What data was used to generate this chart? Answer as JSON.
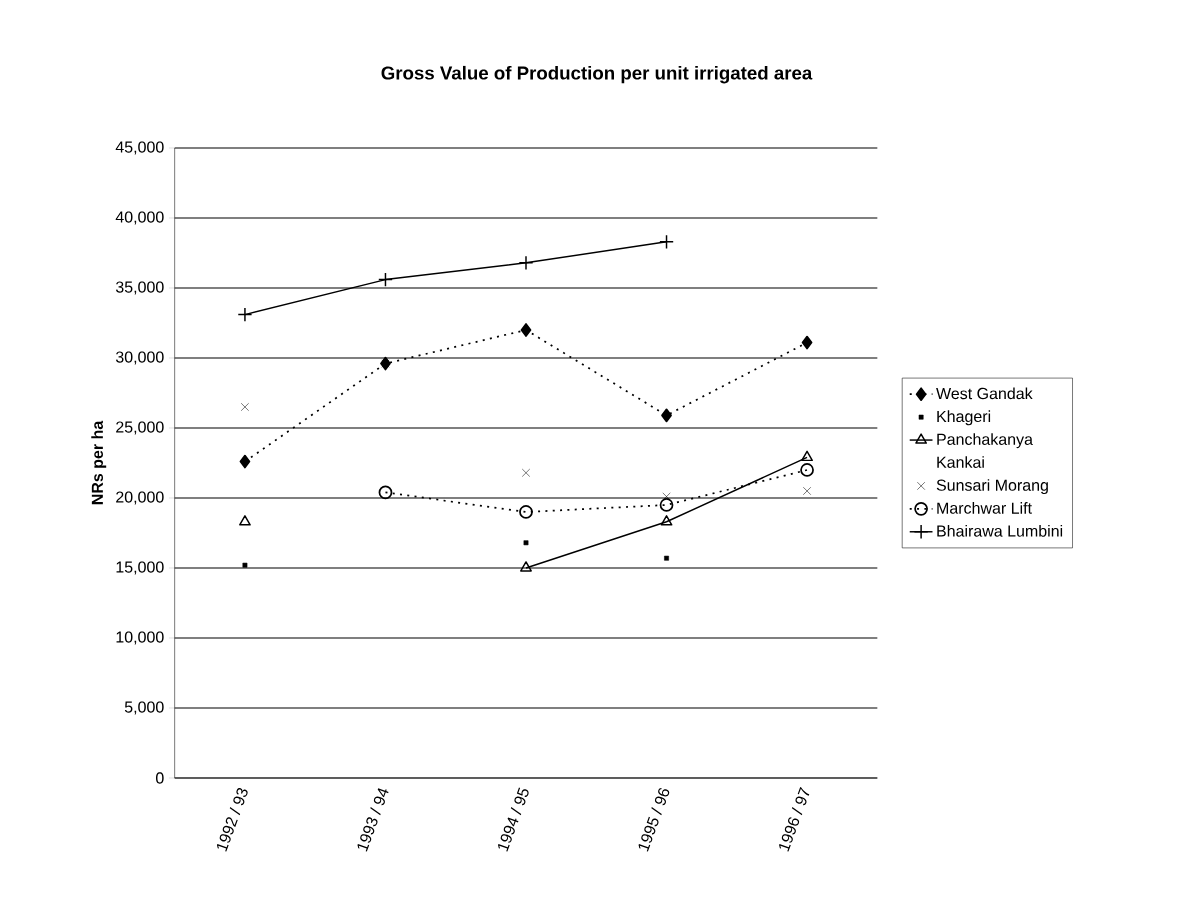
{
  "chart_data": {
    "type": "line",
    "title": "Gross Value of Production per unit irrigated area",
    "ylabel": "NRs per ha",
    "categories": [
      "1992 / 93",
      "1993 / 94",
      "1994 / 95",
      "1995 / 96",
      "1996 / 97"
    ],
    "ylim": [
      0,
      45000
    ],
    "yticks": [
      {
        "value": 0,
        "label": "0"
      },
      {
        "value": 5000,
        "label": "5,000"
      },
      {
        "value": 10000,
        "label": "10,000"
      },
      {
        "value": 15000,
        "label": "15,000"
      },
      {
        "value": 20000,
        "label": "20,000"
      },
      {
        "value": 25000,
        "label": "25,000"
      },
      {
        "value": 30000,
        "label": "30,000"
      },
      {
        "value": 35000,
        "label": "35,000"
      },
      {
        "value": 40000,
        "label": "40,000"
      },
      {
        "value": 45000,
        "label": "45,000"
      }
    ],
    "grid": "y",
    "legend": "right",
    "series": [
      {
        "name": "West Gandak",
        "color": "#000000",
        "marker": "diamond",
        "line_style": "dotted",
        "values": [
          22600,
          29600,
          32000,
          25900,
          31100
        ]
      },
      {
        "name": "Khageri",
        "type": "scatter",
        "color": "#000000",
        "marker": "square",
        "values": [
          15200,
          null,
          16800,
          15700,
          null
        ]
      },
      {
        "name": "Panchakanya",
        "color": "#000000",
        "marker": "triangle",
        "line_style": "solid",
        "values": [
          18300,
          null,
          15000,
          18300,
          22900
        ]
      },
      {
        "name": "Kankai",
        "type": "scatter",
        "color": "#000000",
        "marker": "none",
        "values": [
          null,
          null,
          null,
          null,
          null
        ]
      },
      {
        "name": "Sunsari Morang",
        "type": "scatter",
        "color": "#000000",
        "marker": "cross",
        "values": [
          26500,
          29600,
          21800,
          20100,
          20500
        ]
      },
      {
        "name": "Marchwar Lift",
        "color": "#000000",
        "marker": "circle",
        "line_style": "dotted",
        "values": [
          null,
          20400,
          19000,
          19500,
          22000
        ]
      },
      {
        "name": "Bhairawa Lumbini",
        "color": "#000000",
        "marker": "cross",
        "line_style": "solid",
        "values": [
          33100,
          35600,
          36800,
          38300,
          null
        ]
      }
    ]
  }
}
